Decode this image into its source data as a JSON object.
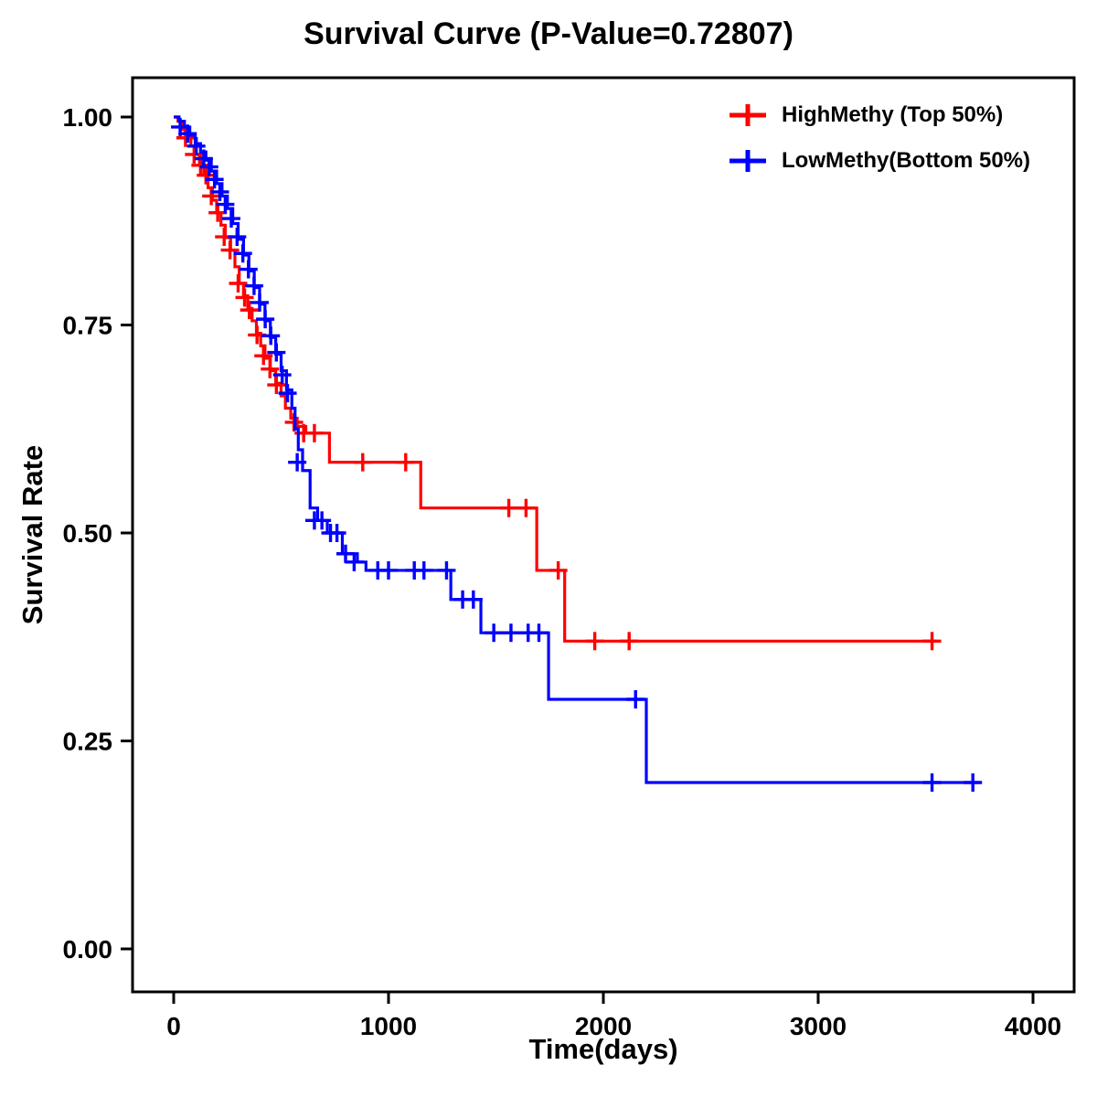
{
  "title": "Survival Curve (P-Value=0.72807)",
  "chart_data": {
    "type": "line",
    "subtype": "kaplan-meier-step",
    "title": "Survival Curve (P-Value=0.72807)",
    "xlabel": "Time(days)",
    "ylabel": "Survival Rate",
    "xlim": [
      0,
      4000
    ],
    "ylim": [
      0.0,
      1.0
    ],
    "x_ticks": [
      0,
      1000,
      2000,
      3000,
      4000
    ],
    "x_tick_labels": [
      "0",
      "1000",
      "2000",
      "3000",
      "4000"
    ],
    "y_ticks": [
      0.0,
      0.25,
      0.5,
      0.75,
      1.0
    ],
    "y_tick_labels": [
      "0.00",
      "0.25",
      "0.50",
      "0.75",
      "1.00"
    ],
    "grid": false,
    "legend_position": "top-right",
    "series": [
      {
        "name": "HighMethy (Top 50%)",
        "color": "#FF0000",
        "steps": [
          [
            0,
            1.0
          ],
          [
            20,
            0.995
          ],
          [
            40,
            0.985
          ],
          [
            60,
            0.975
          ],
          [
            80,
            0.965
          ],
          [
            100,
            0.955
          ],
          [
            120,
            0.945
          ],
          [
            140,
            0.93
          ],
          [
            160,
            0.915
          ],
          [
            180,
            0.9
          ],
          [
            200,
            0.885
          ],
          [
            220,
            0.87
          ],
          [
            240,
            0.855
          ],
          [
            265,
            0.84
          ],
          [
            285,
            0.82
          ],
          [
            305,
            0.8
          ],
          [
            325,
            0.785
          ],
          [
            345,
            0.77
          ],
          [
            365,
            0.755
          ],
          [
            385,
            0.74
          ],
          [
            405,
            0.725
          ],
          [
            425,
            0.71
          ],
          [
            450,
            0.695
          ],
          [
            475,
            0.68
          ],
          [
            500,
            0.665
          ],
          [
            520,
            0.65
          ],
          [
            545,
            0.638
          ],
          [
            575,
            0.628
          ],
          [
            615,
            0.62
          ],
          [
            725,
            0.585
          ],
          [
            1150,
            0.53
          ],
          [
            1690,
            0.455
          ],
          [
            1820,
            0.37
          ],
          [
            3550,
            0.37
          ]
        ],
        "censors": [
          [
            55,
            0.975
          ],
          [
            95,
            0.955
          ],
          [
            125,
            0.942
          ],
          [
            150,
            0.93
          ],
          [
            175,
            0.905
          ],
          [
            205,
            0.885
          ],
          [
            235,
            0.856
          ],
          [
            262,
            0.84
          ],
          [
            300,
            0.8
          ],
          [
            330,
            0.783
          ],
          [
            352,
            0.768
          ],
          [
            388,
            0.738
          ],
          [
            418,
            0.713
          ],
          [
            448,
            0.697
          ],
          [
            478,
            0.678
          ],
          [
            560,
            0.633
          ],
          [
            605,
            0.62
          ],
          [
            655,
            0.62
          ],
          [
            880,
            0.585
          ],
          [
            1080,
            0.585
          ],
          [
            1560,
            0.53
          ],
          [
            1640,
            0.53
          ],
          [
            1790,
            0.455
          ],
          [
            1960,
            0.37
          ],
          [
            2120,
            0.37
          ],
          [
            3530,
            0.37
          ]
        ]
      },
      {
        "name": "LowMethy(Bottom 50%)",
        "color": "#0000FF",
        "steps": [
          [
            0,
            1.0
          ],
          [
            25,
            0.995
          ],
          [
            50,
            0.988
          ],
          [
            75,
            0.978
          ],
          [
            100,
            0.968
          ],
          [
            125,
            0.958
          ],
          [
            150,
            0.948
          ],
          [
            175,
            0.935
          ],
          [
            200,
            0.92
          ],
          [
            225,
            0.905
          ],
          [
            250,
            0.89
          ],
          [
            275,
            0.872
          ],
          [
            300,
            0.853
          ],
          [
            325,
            0.834
          ],
          [
            350,
            0.815
          ],
          [
            375,
            0.795
          ],
          [
            400,
            0.775
          ],
          [
            425,
            0.755
          ],
          [
            450,
            0.735
          ],
          [
            475,
            0.715
          ],
          [
            500,
            0.695
          ],
          [
            525,
            0.672
          ],
          [
            550,
            0.65
          ],
          [
            565,
            0.625
          ],
          [
            580,
            0.6
          ],
          [
            600,
            0.575
          ],
          [
            635,
            0.53
          ],
          [
            670,
            0.515
          ],
          [
            715,
            0.5
          ],
          [
            785,
            0.475
          ],
          [
            855,
            0.465
          ],
          [
            895,
            0.455
          ],
          [
            1290,
            0.42
          ],
          [
            1430,
            0.38
          ],
          [
            1745,
            0.3
          ],
          [
            2200,
            0.2
          ],
          [
            3750,
            0.2
          ]
        ],
        "censors": [
          [
            30,
            0.988
          ],
          [
            65,
            0.98
          ],
          [
            105,
            0.965
          ],
          [
            140,
            0.95
          ],
          [
            165,
            0.94
          ],
          [
            190,
            0.925
          ],
          [
            215,
            0.91
          ],
          [
            240,
            0.895
          ],
          [
            268,
            0.878
          ],
          [
            295,
            0.856
          ],
          [
            322,
            0.836
          ],
          [
            348,
            0.817
          ],
          [
            374,
            0.797
          ],
          [
            400,
            0.777
          ],
          [
            426,
            0.757
          ],
          [
            452,
            0.737
          ],
          [
            478,
            0.717
          ],
          [
            505,
            0.69
          ],
          [
            530,
            0.668
          ],
          [
            575,
            0.585
          ],
          [
            655,
            0.515
          ],
          [
            690,
            0.515
          ],
          [
            730,
            0.5
          ],
          [
            760,
            0.5
          ],
          [
            800,
            0.475
          ],
          [
            840,
            0.465
          ],
          [
            950,
            0.455
          ],
          [
            1000,
            0.455
          ],
          [
            1120,
            0.455
          ],
          [
            1165,
            0.455
          ],
          [
            1270,
            0.455
          ],
          [
            1345,
            0.42
          ],
          [
            1395,
            0.42
          ],
          [
            1490,
            0.38
          ],
          [
            1570,
            0.38
          ],
          [
            1650,
            0.38
          ],
          [
            1700,
            0.38
          ],
          [
            2150,
            0.3
          ],
          [
            3530,
            0.2
          ],
          [
            3720,
            0.2
          ]
        ]
      }
    ]
  }
}
